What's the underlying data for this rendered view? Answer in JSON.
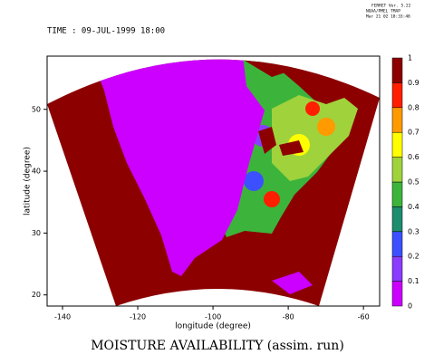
{
  "chart_data": {
    "type": "map",
    "title": "MOISTURE AVAILABILITY (assim. run)",
    "time_label": "TIME : 09-JUL-1999 18:00",
    "credits": [
      "FERRET Ver. 5.22",
      "NOAA/PMEL TMAP",
      "Mar 21 02 18:33:48"
    ],
    "xlabel": "longitude (degree)",
    "ylabel": "latitude (degree)",
    "xlim": [
      -144.1,
      -55.7
    ],
    "xticks": [
      -140,
      -120,
      -100,
      -80,
      -60
    ],
    "ylim": [
      18.2,
      58.6
    ],
    "yticks": [
      20,
      30,
      40,
      50
    ],
    "colorbar": {
      "levels": [
        0,
        0.1,
        0.2,
        0.3,
        0.4,
        0.5,
        0.6,
        0.7,
        0.8,
        0.9,
        1
      ],
      "colors": [
        "#cc00ff",
        "#8a3cff",
        "#3c50ff",
        "#1e8c6e",
        "#3cb43c",
        "#a0d23c",
        "#ffff00",
        "#ff9a00",
        "#ff1e00",
        "#8c0000"
      ]
    }
  }
}
